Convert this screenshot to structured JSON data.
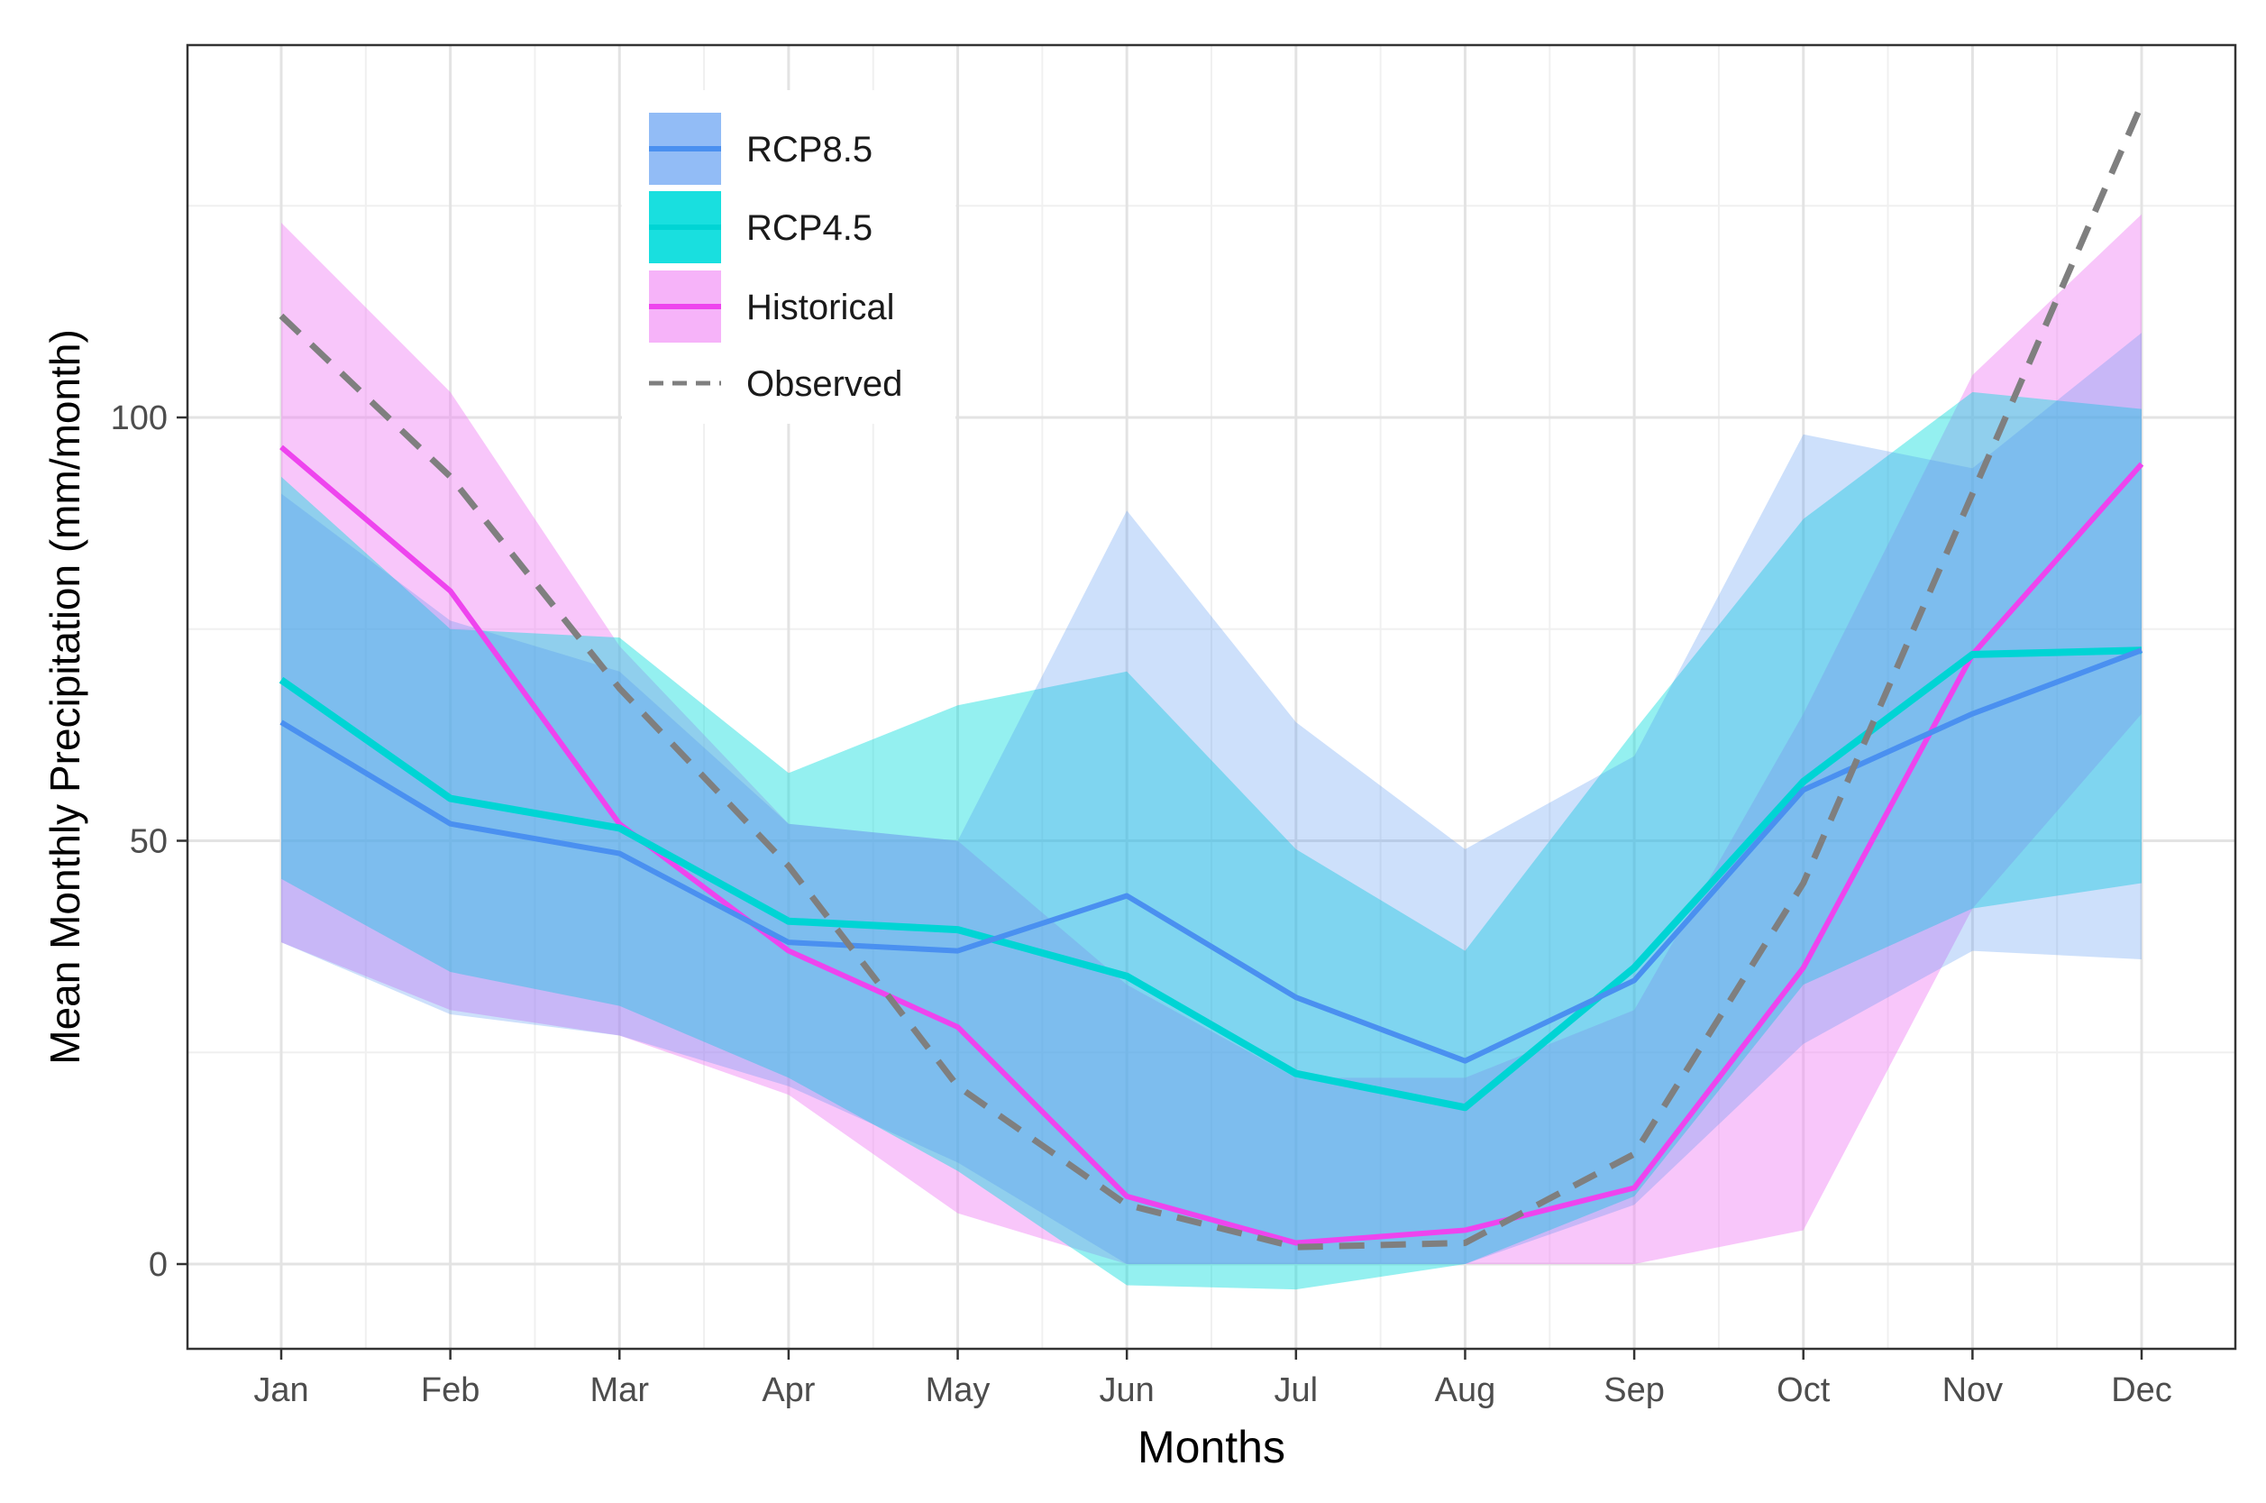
{
  "chart_data": {
    "type": "line",
    "xlabel": "Months",
    "ylabel": "Mean Monthly Precipitation (mm/month)",
    "categories": [
      "Jan",
      "Feb",
      "Mar",
      "Apr",
      "May",
      "Jun",
      "Jul",
      "Aug",
      "Sep",
      "Oct",
      "Nov",
      "Dec"
    ],
    "ylim": [
      -10,
      145
    ],
    "yticks": [
      0,
      50,
      100
    ],
    "grid": true,
    "legend_position": "top-left",
    "series": [
      {
        "name": "RCP8.5",
        "color": "#4a90f0",
        "values": [
          64,
          52,
          48.5,
          38,
          37,
          43.5,
          31.5,
          24,
          33.5,
          56,
          65,
          72.5
        ],
        "band_upper": [
          91,
          76,
          70,
          52,
          50,
          89,
          64,
          49,
          60,
          98,
          94,
          110
        ],
        "band_lower": [
          38,
          29.5,
          27,
          21,
          12,
          0,
          0,
          0,
          7,
          26,
          37,
          36
        ]
      },
      {
        "name": "RCP4.5",
        "color": "#00d4d4",
        "values": [
          69,
          55,
          51.5,
          40.5,
          39.5,
          34,
          22.5,
          18.5,
          35,
          57,
          72,
          72.5
        ],
        "band_upper": [
          93,
          75,
          74,
          58,
          66,
          70,
          49,
          37,
          63,
          88,
          103,
          101
        ],
        "band_lower": [
          45.5,
          34.5,
          30.5,
          22,
          11,
          -2.5,
          -3,
          0,
          8,
          33,
          42,
          45
        ]
      },
      {
        "name": "Historical",
        "color": "#ee44ee",
        "values": [
          96.5,
          79.5,
          52,
          37,
          28,
          8,
          2.5,
          4,
          9,
          35,
          72,
          94.5
        ],
        "band_upper": [
          123,
          103,
          73,
          52,
          50,
          33,
          22,
          22,
          30,
          65,
          105,
          124
        ],
        "band_lower": [
          38,
          30,
          27,
          20,
          6,
          0,
          0,
          0,
          0,
          4,
          42,
          65
        ]
      },
      {
        "name": "Observed",
        "color": "#7f7f7f",
        "dashed": true,
        "values": [
          112,
          93,
          68,
          47,
          21,
          7,
          2,
          2.5,
          13,
          45,
          91,
          137
        ]
      }
    ]
  },
  "legend": {
    "items": [
      {
        "label": "RCP8.5",
        "color": "#4a90f0",
        "band_color": "#4a90f0",
        "dashed": false
      },
      {
        "label": "RCP4.5",
        "color": "#00d4d4",
        "band_color": "#00dcdc",
        "dashed": false
      },
      {
        "label": "Historical",
        "color": "#ee44ee",
        "band_color": "#f080f5",
        "dashed": false
      },
      {
        "label": "Observed",
        "color": "#7f7f7f",
        "band_color": null,
        "dashed": true
      }
    ]
  }
}
